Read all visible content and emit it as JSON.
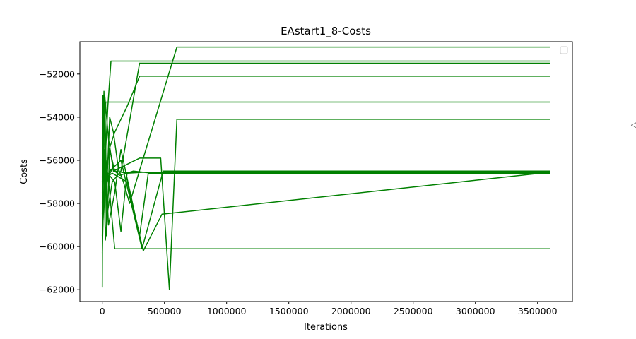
{
  "chart_data": {
    "type": "line",
    "title": "EAstart1_8-Costs",
    "xlabel": "Iterations",
    "ylabel": "Costs",
    "xlim": [
      -180000,
      3780000
    ],
    "ylim": [
      -62550,
      -50500
    ],
    "xticks": [
      0,
      500000,
      1000000,
      1500000,
      2000000,
      2500000,
      3000000,
      3500000
    ],
    "xtick_labels": [
      "0",
      "500000",
      "1000000",
      "1500000",
      "2000000",
      "2500000",
      "3000000",
      "3500000"
    ],
    "yticks": [
      -62000,
      -60000,
      -58000,
      -56000,
      -54000,
      -52000
    ],
    "ytick_labels": [
      "−62000",
      "−60000",
      "−58000",
      "−56000",
      "−54000",
      "−52000"
    ],
    "grid": false,
    "legend": {
      "placement": "upper right",
      "entries": []
    },
    "line_color": "#008000",
    "side_glyph": "◁",
    "series": [
      {
        "x": [
          0,
          8000,
          20000,
          35000,
          60000,
          90000,
          130000,
          170000,
          220000,
          600000,
          3600000
        ],
        "y": [
          -59500,
          -55000,
          -53000,
          -57500,
          -54000,
          -54700,
          -56400,
          -57000,
          -58000,
          -50750,
          -50750
        ]
      },
      {
        "x": [
          0,
          10000,
          25000,
          45000,
          70000,
          3600000
        ],
        "y": [
          -56000,
          -53000,
          -55800,
          -53500,
          -51400,
          -51400
        ]
      },
      {
        "x": [
          0,
          15000,
          40000,
          80000,
          150000,
          300000,
          3600000
        ],
        "y": [
          -57000,
          -54000,
          -58500,
          -57000,
          -56500,
          -51500,
          -51500
        ]
      },
      {
        "x": [
          0,
          12000,
          30000,
          55000,
          100000,
          200000,
          300000,
          3600000
        ],
        "y": [
          -58500,
          -53500,
          -57000,
          -55500,
          -54700,
          -53500,
          -52100,
          -52100
        ]
      },
      {
        "x": [
          0,
          5000,
          18000,
          28000,
          3600000
        ],
        "y": [
          -55000,
          -53300,
          -54500,
          -53300,
          -53300
        ]
      },
      {
        "x": [
          0,
          6000,
          15000,
          30000,
          100000,
          150000,
          200000,
          3600000
        ],
        "y": [
          -61900,
          -53000,
          -58000,
          -56500,
          -57000,
          -59300,
          -56550,
          -56550
        ]
      },
      {
        "x": [
          0,
          10000,
          25000,
          60000,
          150000,
          320000,
          490000,
          3600000
        ],
        "y": [
          -54000,
          -56000,
          -59700,
          -56500,
          -56000,
          -60100,
          -56500,
          -56500
        ]
      },
      {
        "x": [
          0,
          20000,
          50000,
          100000,
          150000,
          300000,
          370000,
          3600000
        ],
        "y": [
          -60300,
          -55500,
          -59000,
          -57500,
          -55500,
          -59500,
          -56600,
          -56600
        ]
      },
      {
        "x": [
          0,
          10000,
          30000,
          80000,
          200000,
          330000,
          480000,
          3600000
        ],
        "y": [
          -57500,
          -56500,
          -56800,
          -56600,
          -57000,
          -60200,
          -58500,
          -56550
        ]
      },
      {
        "x": [
          0,
          14000,
          35000,
          60000,
          100000,
          200000,
          350000,
          3600000
        ],
        "y": [
          -56800,
          -52800,
          -59500,
          -55500,
          -56500,
          -56600,
          -56550,
          -56550
        ]
      },
      {
        "x": [
          0,
          8000,
          22000,
          45000,
          80000,
          140000,
          250000,
          400000,
          3600000
        ],
        "y": [
          -58000,
          -54500,
          -57500,
          -56800,
          -56400,
          -56700,
          -56500,
          -56600,
          -56600
        ]
      },
      {
        "x": [
          0,
          20000,
          50000,
          90000,
          300000,
          470000,
          540000,
          600000,
          3600000
        ],
        "y": [
          -57000,
          -53000,
          -55000,
          -56500,
          -55900,
          -55900,
          -62000,
          -54100,
          -54100
        ]
      },
      {
        "x": [
          0,
          30000,
          60000,
          100000,
          3600000
        ],
        "y": [
          -59500,
          -56000,
          -57500,
          -60100,
          -60100
        ]
      }
    ]
  }
}
